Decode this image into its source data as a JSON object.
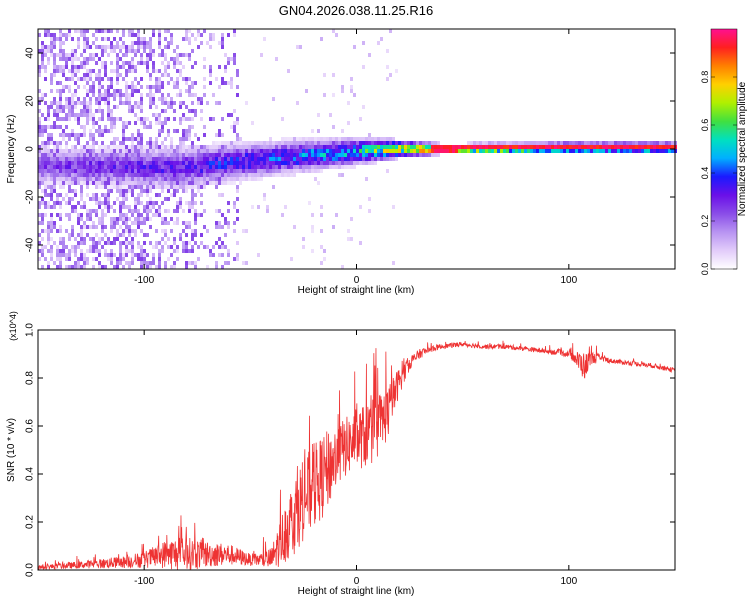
{
  "title": "GN04.2026.038.11.25.R16",
  "colors": {
    "background": "#ffffff",
    "axis": "#000000",
    "snr_line": "#ee3333",
    "colormap": [
      "#ffffff",
      "#e2ccfa",
      "#b894f2",
      "#8a4de8",
      "#6a10e8",
      "#1a1aff",
      "#00b0ff",
      "#00e0c0",
      "#40e040",
      "#b0f000",
      "#ffd000",
      "#ff8000",
      "#ff2020",
      "#ff1090"
    ]
  },
  "chart_data": [
    {
      "type": "heatmap",
      "name": "spectrogram",
      "title": "GN04.2026.038.11.25.R16",
      "xlabel": "Height of straight line (km)",
      "ylabel": "Frequency (Hz)",
      "xlim": [
        -150,
        150
      ],
      "ylim": [
        -50,
        50
      ],
      "xticks": [
        -100,
        0,
        100
      ],
      "yticks": [
        -40,
        -20,
        0,
        20,
        40
      ],
      "colorbar": {
        "label": "Normalized spectral amplitude",
        "range": [
          0,
          1
        ],
        "ticks": [
          "0.0",
          "0.2",
          "0.4",
          "0.6",
          "0.8"
        ],
        "tick_values": [
          0.0,
          0.2,
          0.4,
          0.6,
          0.8
        ]
      },
      "signal_band": {
        "center_frequency_hz": 0,
        "description_points": [
          {
            "height_km": -140,
            "center_hz": -7,
            "halfwidth_hz": 5,
            "amplitude": 0.3
          },
          {
            "height_km": -85,
            "center_hz": -8,
            "halfwidth_hz": 6,
            "amplitude": 0.35
          },
          {
            "height_km": -40,
            "center_hz": -4,
            "halfwidth_hz": 5,
            "amplitude": 0.45
          },
          {
            "height_km": 0,
            "center_hz": -1,
            "halfwidth_hz": 4,
            "amplitude": 0.55
          },
          {
            "height_km": 20,
            "center_hz": 0,
            "halfwidth_hz": 2.5,
            "amplitude": 0.85
          },
          {
            "height_km": 40,
            "center_hz": 0,
            "halfwidth_hz": 1.5,
            "amplitude": 0.95
          },
          {
            "height_km": 100,
            "center_hz": 0.5,
            "halfwidth_hz": 1.5,
            "amplitude": 0.95
          },
          {
            "height_km": 150,
            "center_hz": 0.5,
            "halfwidth_hz": 1.5,
            "amplitude": 0.95
          }
        ],
        "noise_region_km": [
          -150,
          -55
        ]
      }
    },
    {
      "type": "line",
      "name": "snr",
      "xlabel": "Height of straight line (km)",
      "ylabel": "SNR (10 * v/v)",
      "y_multiplier": "(x10^4)",
      "xlim": [
        -150,
        150
      ],
      "ylim": [
        0,
        1.0
      ],
      "xticks": [
        -100,
        0,
        100
      ],
      "yticks": [
        0.0,
        0.2,
        0.4,
        0.6,
        0.8,
        1.0
      ],
      "ytick_labels": [
        "0.0",
        "0.2",
        "0.4",
        "0.6",
        "0.8",
        "1.0"
      ],
      "series": [
        {
          "name": "SNR",
          "color": "#ee3333",
          "envelope": {
            "x": [
              -150,
              -130,
              -110,
              -100,
              -95,
              -90,
              -85,
              -80,
              -75,
              -70,
              -65,
              -60,
              -55,
              -50,
              -45,
              -40,
              -35,
              -30,
              -25,
              -20,
              -15,
              -10,
              -5,
              0,
              5,
              10,
              15,
              20,
              25,
              30,
              35,
              40,
              50,
              60,
              70,
              80,
              90,
              100,
              103,
              105,
              108,
              110,
              115,
              120,
              130,
              140,
              150
            ],
            "base": [
              0.01,
              0.02,
              0.03,
              0.04,
              0.05,
              0.06,
              0.06,
              0.06,
              0.06,
              0.06,
              0.06,
              0.06,
              0.05,
              0.04,
              0.04,
              0.04,
              0.12,
              0.2,
              0.28,
              0.33,
              0.38,
              0.45,
              0.5,
              0.53,
              0.55,
              0.58,
              0.65,
              0.78,
              0.86,
              0.9,
              0.92,
              0.93,
              0.94,
              0.93,
              0.93,
              0.92,
              0.91,
              0.9,
              0.88,
              0.86,
              0.84,
              0.88,
              0.88,
              0.87,
              0.86,
              0.85,
              0.83
            ],
            "jitter": [
              0.02,
              0.03,
              0.05,
              0.07,
              0.09,
              0.12,
              0.14,
              0.14,
              0.13,
              0.11,
              0.1,
              0.09,
              0.07,
              0.05,
              0.06,
              0.1,
              0.22,
              0.32,
              0.35,
              0.35,
              0.35,
              0.28,
              0.25,
              0.25,
              0.28,
              0.28,
              0.22,
              0.12,
              0.06,
              0.04,
              0.03,
              0.02,
              0.02,
              0.02,
              0.02,
              0.02,
              0.02,
              0.03,
              0.05,
              0.1,
              0.12,
              0.06,
              0.03,
              0.02,
              0.02,
              0.02,
              0.02
            ]
          }
        }
      ]
    }
  ]
}
